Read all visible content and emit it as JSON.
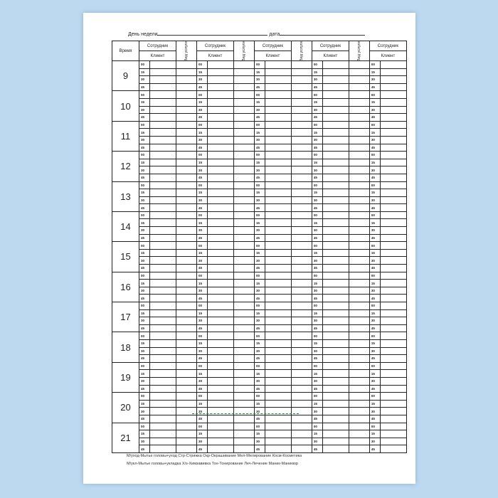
{
  "header": {
    "day_label": "День недели",
    "date_label": "дата"
  },
  "table": {
    "time_header": "Время",
    "employee_header": "Сотрудник",
    "client_header": "Клиент",
    "service_header": "Вид услуги",
    "groups": 5,
    "hours": [
      "9",
      "10",
      "11",
      "12",
      "13",
      "14",
      "15",
      "16",
      "17",
      "18",
      "19",
      "20",
      "21"
    ],
    "minutes": [
      "00",
      "15",
      "30",
      "45"
    ]
  },
  "legend": {
    "line1": "М/уход-Мытье головы+уход   Стр-Стрижка   Окр-Окрашивание   Мел-Мелирование   Косм-Косметика",
    "line2": "М/укл-Мытье головы+укладка   Х/з-Химзавивка   Тон-Тонирование   Леч-Лечение   Маник-Маникюр"
  }
}
